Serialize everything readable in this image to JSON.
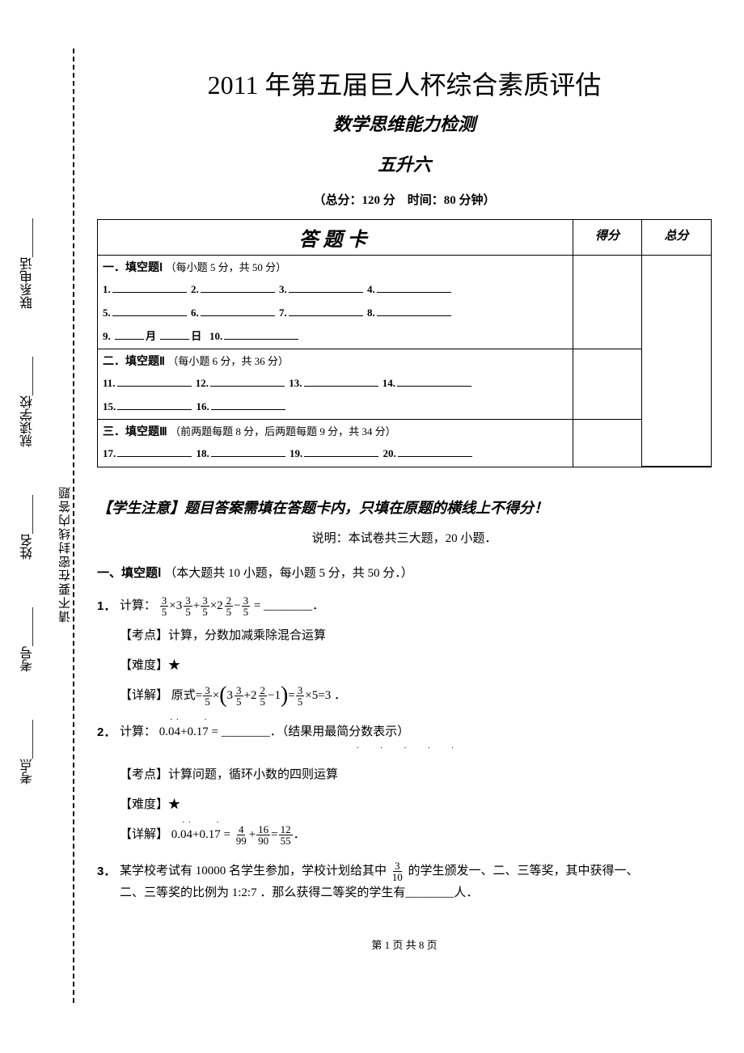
{
  "side": {
    "fields": [
      "考点______",
      "考号______",
      "姓名______",
      "就读学校______",
      "联系电话______"
    ],
    "seal_note": "请不要在密封线内答题"
  },
  "header": {
    "title": "2011 年第五届巨人杯综合素质评估",
    "sub1": "数学思维能力检测",
    "sub2": "五升六",
    "info": "（总分：120 分　时间：80 分钟）"
  },
  "card": {
    "title": "答题卡",
    "score_col": "得分",
    "total_col": "总分",
    "sections": [
      {
        "title": "一．填空题Ⅰ",
        "hint": "（每小题 5 分，共 50 分）",
        "lines": [
          [
            {
              "n": "1."
            },
            {
              "n": "2."
            },
            {
              "n": "3."
            },
            {
              "n": "4."
            }
          ],
          [
            {
              "n": "5."
            },
            {
              "n": "6."
            },
            {
              "n": "7."
            },
            {
              "n": "8."
            }
          ]
        ],
        "tail": {
          "n9": "9.",
          "month": "月",
          "day": "日",
          "n10": "10."
        }
      },
      {
        "title": "二．填空题Ⅱ",
        "hint": "（每小题 6 分，共 36 分）",
        "lines": [
          [
            {
              "n": "11."
            },
            {
              "n": "12."
            },
            {
              "n": "13."
            },
            {
              "n": "14."
            }
          ]
        ],
        "tail2": [
          {
            "n": "15."
          },
          {
            "n": "16."
          }
        ]
      },
      {
        "title": "三．填空题Ⅲ",
        "hint": "（前两题每题 8 分，后两题每题 9 分，共 34 分）",
        "lines": [
          [
            {
              "n": "17."
            },
            {
              "n": "18."
            },
            {
              "n": "19."
            },
            {
              "n": "20."
            }
          ]
        ]
      }
    ]
  },
  "notice": "【学生注意】题目答案需填在答题卡内，只填在原题的横线上不得分！",
  "notice_sub": "说明：本试卷共三大题，20 小题．",
  "section1_heading_bold": "一、填空题Ⅰ",
  "section1_heading_rest": "（本大题共 10 小题，每小题 5 分，共 50 分．）",
  "q1": {
    "n": "1．",
    "prefix": "计算：",
    "tag_point": "【考点】计算，分数加减乘除混合运算",
    "tag_level_label": "【难度】",
    "tag_level": "★",
    "detail_label": "【详解】",
    "detail_tail": "=3 ．"
  },
  "q2": {
    "n": "2．",
    "prefix": "计算：",
    "mid": "= ________．（结果用最简分数表示）",
    "dots_hint": "．．．．",
    "tag_point": "【考点】计算问题，循环小数的四则运算",
    "tag_level_label": "【难度】",
    "tag_level": "★",
    "detail_label": "【详解】",
    "eq_final": "．"
  },
  "q3": {
    "n": "3．",
    "text_a": "某学校考试有 10000 名学生参加，学校计划给其中",
    "text_b": "的学生颁发一、二、三等奖，其中获得一、",
    "text_c": "二、三等奖的比例为 1:2:7 ．那么获得二等奖的学生有________人．"
  },
  "footer": "第 1 页  共 8 页"
}
